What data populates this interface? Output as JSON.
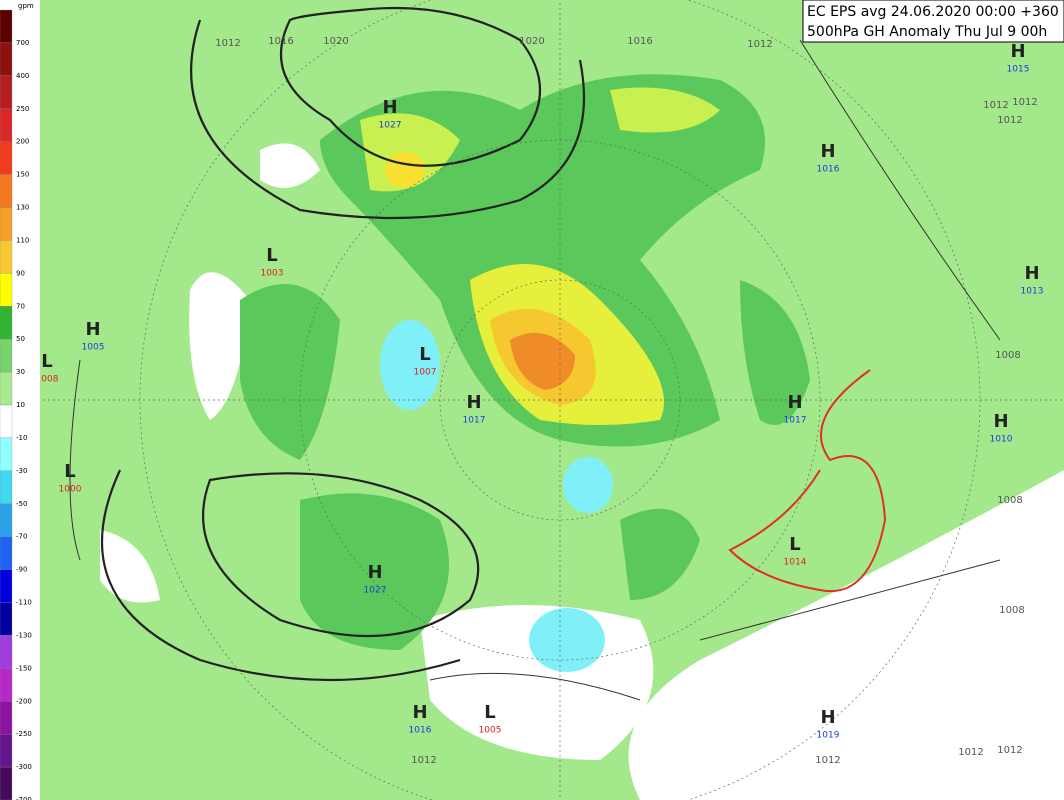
{
  "header": {
    "line1": "EC EPS avg 24.06.2020 00:00 +360 h",
    "line2": "500hPa GH Anomaly Thu Jul 9 00h"
  },
  "legend": {
    "unit": "gpm",
    "labels": [
      700,
      400,
      250,
      200,
      150,
      130,
      110,
      90,
      70,
      50,
      30,
      10,
      -10,
      -30,
      -50,
      -70,
      -90,
      -110,
      -130,
      -150,
      -200,
      -250,
      -300,
      -700
    ],
    "colors": [
      "#5c0000",
      "#8c1010",
      "#b41e1e",
      "#d82828",
      "#f03c1e",
      "#f5781e",
      "#f5a028",
      "#f8c832",
      "#ffff00",
      "#32b432",
      "#78d26e",
      "#a8ea90",
      "#ffffff",
      "#90ffff",
      "#40d8f0",
      "#2ca0e8",
      "#1e64f0",
      "#0000dc",
      "#0000a0",
      "#a03cdc",
      "#b428c8",
      "#8c14a0",
      "#64148c",
      "#460a5a"
    ]
  },
  "centers": [
    {
      "kind": "H",
      "value": "1015"
    },
    {
      "kind": "H",
      "value": "1027"
    },
    {
      "kind": "H",
      "value": "1016"
    },
    {
      "kind": "L",
      "value": "1003"
    },
    {
      "kind": "H",
      "value": "1013"
    },
    {
      "kind": "H",
      "value": "1005"
    },
    {
      "kind": "L",
      "value": "1008"
    },
    {
      "kind": "L",
      "value": "1007"
    },
    {
      "kind": "H",
      "value": "1017"
    },
    {
      "kind": "H",
      "value": "1017"
    },
    {
      "kind": "H",
      "value": "1010"
    },
    {
      "kind": "L",
      "value": "1000"
    },
    {
      "kind": "L",
      "value": "1014"
    },
    {
      "kind": "H",
      "value": "1027"
    },
    {
      "kind": "H",
      "value": "1016"
    },
    {
      "kind": "L",
      "value": "1005"
    },
    {
      "kind": "H",
      "value": "1019"
    }
  ],
  "isobar_labels": [
    "1012",
    "1016",
    "1020",
    "1020",
    "1016",
    "1012",
    "1012",
    "1012",
    "1012",
    "1008",
    "1008",
    "1008",
    "1012",
    "1012",
    "1012",
    "1012"
  ]
}
